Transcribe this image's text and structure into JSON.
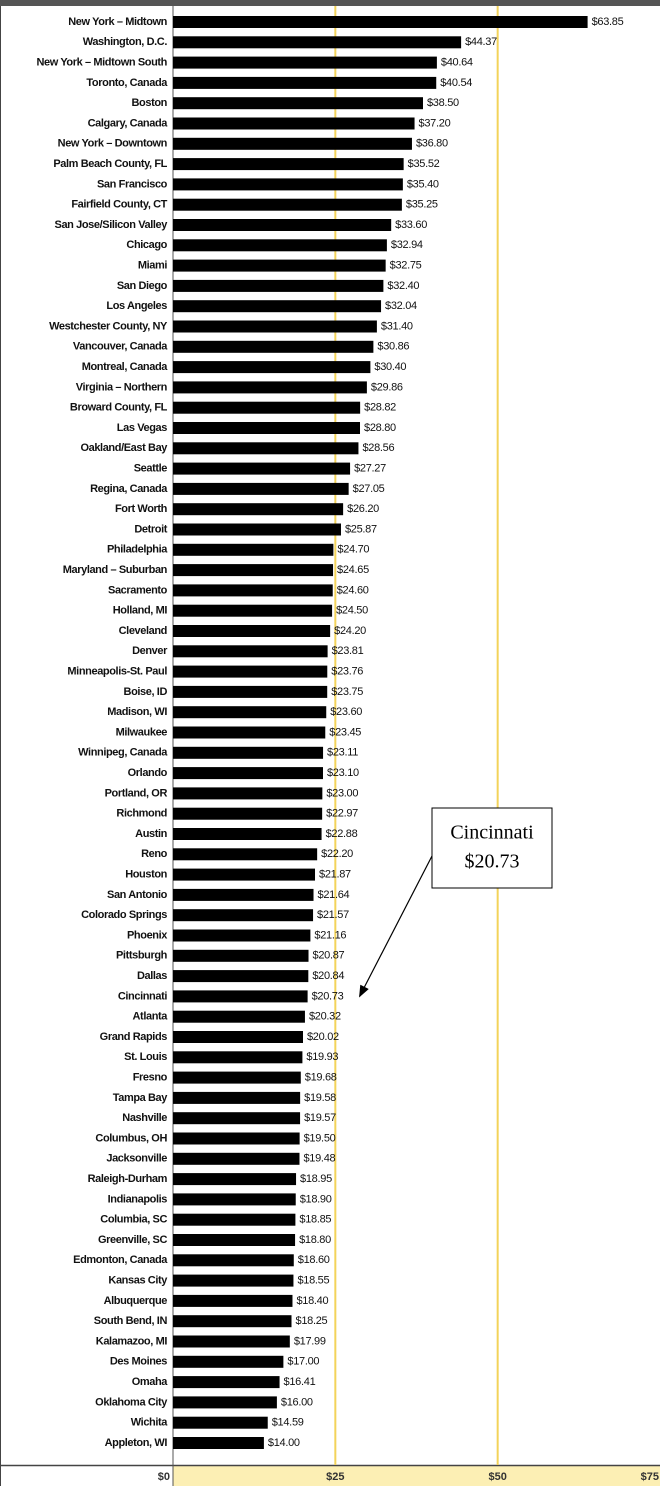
{
  "chart_data": {
    "type": "bar",
    "orientation": "horizontal",
    "categories": [
      "New York – Midtown",
      "Washington, D.C.",
      "New York – Midtown South",
      "Toronto, Canada",
      "Boston",
      "Calgary, Canada",
      "New York – Downtown",
      "Palm Beach County, FL",
      "San Francisco",
      "Fairfield County, CT",
      "San Jose/Silicon Valley",
      "Chicago",
      "Miami",
      "San Diego",
      "Los Angeles",
      "Westchester County, NY",
      "Vancouver, Canada",
      "Montreal, Canada",
      "Virginia – Northern",
      "Broward County, FL",
      "Las Vegas",
      "Oakland/East Bay",
      "Seattle",
      "Regina, Canada",
      "Fort Worth",
      "Detroit",
      "Philadelphia",
      "Maryland – Suburban",
      "Sacramento",
      "Holland, MI",
      "Cleveland",
      "Denver",
      "Minneapolis-St. Paul",
      "Boise, ID",
      "Madison, WI",
      "Milwaukee",
      "Winnipeg, Canada",
      "Orlando",
      "Portland, OR",
      "Richmond",
      "Austin",
      "Reno",
      "Houston",
      "San Antonio",
      "Colorado Springs",
      "Phoenix",
      "Pittsburgh",
      "Dallas",
      "Cincinnati",
      "Atlanta",
      "Grand Rapids",
      "St. Louis",
      "Fresno",
      "Tampa Bay",
      "Nashville",
      "Columbus, OH",
      "Jacksonville",
      "Raleigh-Durham",
      "Indianapolis",
      "Columbia, SC",
      "Greenville, SC",
      "Edmonton, Canada",
      "Kansas City",
      "Albuquerque",
      "South Bend, IN",
      "Kalamazoo, MI",
      "Des Moines",
      "Omaha",
      "Oklahoma City",
      "Wichita",
      "Appleton, WI"
    ],
    "values": [
      63.85,
      44.37,
      40.64,
      40.54,
      38.5,
      37.2,
      36.8,
      35.52,
      35.4,
      35.25,
      33.6,
      32.94,
      32.75,
      32.4,
      32.04,
      31.4,
      30.86,
      30.4,
      29.86,
      28.82,
      28.8,
      28.56,
      27.27,
      27.05,
      26.2,
      25.87,
      24.7,
      24.65,
      24.6,
      24.5,
      24.2,
      23.81,
      23.76,
      23.75,
      23.6,
      23.45,
      23.11,
      23.1,
      23.0,
      22.97,
      22.88,
      22.2,
      21.87,
      21.64,
      21.57,
      21.16,
      20.87,
      20.84,
      20.73,
      20.32,
      20.02,
      19.93,
      19.68,
      19.58,
      19.57,
      19.5,
      19.48,
      18.95,
      18.9,
      18.85,
      18.8,
      18.6,
      18.55,
      18.4,
      18.25,
      17.99,
      17.0,
      16.41,
      16.0,
      14.59,
      14.0
    ],
    "value_labels": [
      "$63.85",
      "$44.37",
      "$40.64",
      "$40.54",
      "$38.50",
      "$37.20",
      "$36.80",
      "$35.52",
      "$35.40",
      "$35.25",
      "$33.60",
      "$32.94",
      "$32.75",
      "$32.40",
      "$32.04",
      "$31.40",
      "$30.86",
      "$30.40",
      "$29.86",
      "$28.82",
      "$28.80",
      "$28.56",
      "$27.27",
      "$27.05",
      "$26.20",
      "$25.87",
      "$24.70",
      "$24.65",
      "$24.60",
      "$24.50",
      "$24.20",
      "$23.81",
      "$23.76",
      "$23.75",
      "$23.60",
      "$23.45",
      "$23.11",
      "$23.10",
      "$23.00",
      "$22.97",
      "$22.88",
      "$22.20",
      "$21.87",
      "$21.64",
      "$21.57",
      "$21.16",
      "$20.87",
      "$20.84",
      "$20.73",
      "$20.32",
      "$20.02",
      "$19.93",
      "$19.68",
      "$19.58",
      "$19.57",
      "$19.50",
      "$19.48",
      "$18.95",
      "$18.90",
      "$18.85",
      "$18.80",
      "$18.60",
      "$18.55",
      "$18.40",
      "$18.25",
      "$17.99",
      "$17.00",
      "$16.41",
      "$16.00",
      "$14.59",
      "$14.00"
    ],
    "color": "#000000",
    "xlim": [
      0,
      75
    ],
    "xticks": [
      {
        "value": 0,
        "label": "$0"
      },
      {
        "value": 25,
        "label": "$25"
      },
      {
        "value": 50,
        "label": "$50"
      },
      {
        "value": 75,
        "label": "$75"
      }
    ],
    "grid": true,
    "grid_color": "#f3d35a",
    "annotation": {
      "lines": [
        "Cincinnati",
        "$20.73"
      ],
      "target": 48
    }
  }
}
